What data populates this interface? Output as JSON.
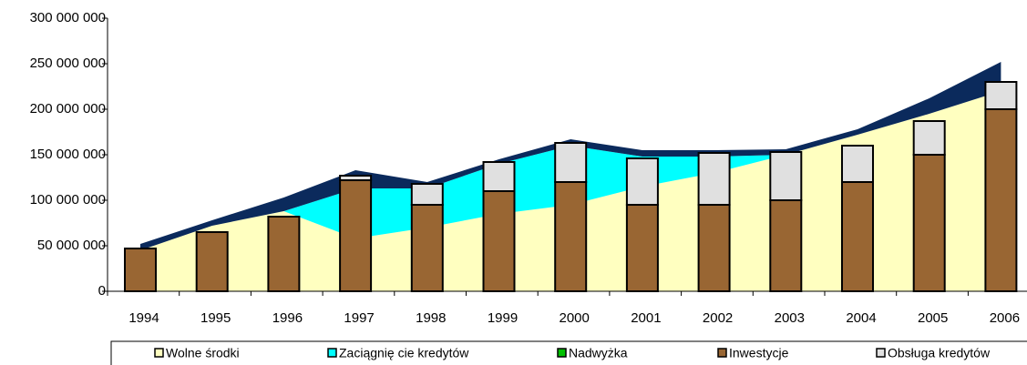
{
  "chart_data": {
    "type": "stacked_area_bar",
    "categories": [
      "1994",
      "1995",
      "1996",
      "1997",
      "1998",
      "1999",
      "2000",
      "2001",
      "2002",
      "2003",
      "2004",
      "2005",
      "2006"
    ],
    "ylim": [
      0,
      300000000
    ],
    "yticks": [
      {
        "value": 0,
        "label": "0"
      },
      {
        "value": 50000000,
        "label": "50 000 000"
      },
      {
        "value": 100000000,
        "label": "100 000 000"
      },
      {
        "value": 150000000,
        "label": "150 000 000"
      },
      {
        "value": 200000000,
        "label": "200 000 000"
      },
      {
        "value": 250000000,
        "label": "250 000 000"
      },
      {
        "value": 300000000,
        "label": "300 000 000"
      }
    ],
    "area_series": [
      {
        "name": "Wolne środki",
        "color": "#ffffc0",
        "values": [
          45000000,
          72000000,
          88000000,
          58000000,
          70000000,
          85000000,
          95000000,
          115000000,
          130000000,
          150000000,
          172000000,
          195000000,
          220000000
        ]
      },
      {
        "name": "Zaciągnię cie kredytów",
        "color": "#00ffff",
        "values": [
          0,
          0,
          0,
          55000000,
          43000000,
          55000000,
          65000000,
          33000000,
          18000000,
          0,
          0,
          0,
          0
        ]
      },
      {
        "name": "Nadwyżka",
        "color": "#00c000",
        "values": [
          0,
          0,
          0,
          0,
          0,
          0,
          0,
          0,
          0,
          0,
          0,
          0,
          0
        ]
      },
      {
        "name": null,
        "color": "#0b2a5c",
        "values": [
          7000000,
          6000000,
          15000000,
          20000000,
          7000000,
          5000000,
          7000000,
          7000000,
          7000000,
          6000000,
          6000000,
          17000000,
          32000000
        ]
      }
    ],
    "bar_series": [
      {
        "name": "Inwestycje",
        "color": "#996633",
        "values": [
          47000000,
          65000000,
          82000000,
          122000000,
          95000000,
          110000000,
          120000000,
          95000000,
          95000000,
          100000000,
          120000000,
          150000000,
          200000000
        ]
      },
      {
        "name": "Obsługa kredytów",
        "color": "#e0e0e0",
        "values": [
          0,
          0,
          0,
          5000000,
          23000000,
          32000000,
          43000000,
          51000000,
          57000000,
          53000000,
          40000000,
          37000000,
          30000000
        ]
      }
    ]
  }
}
